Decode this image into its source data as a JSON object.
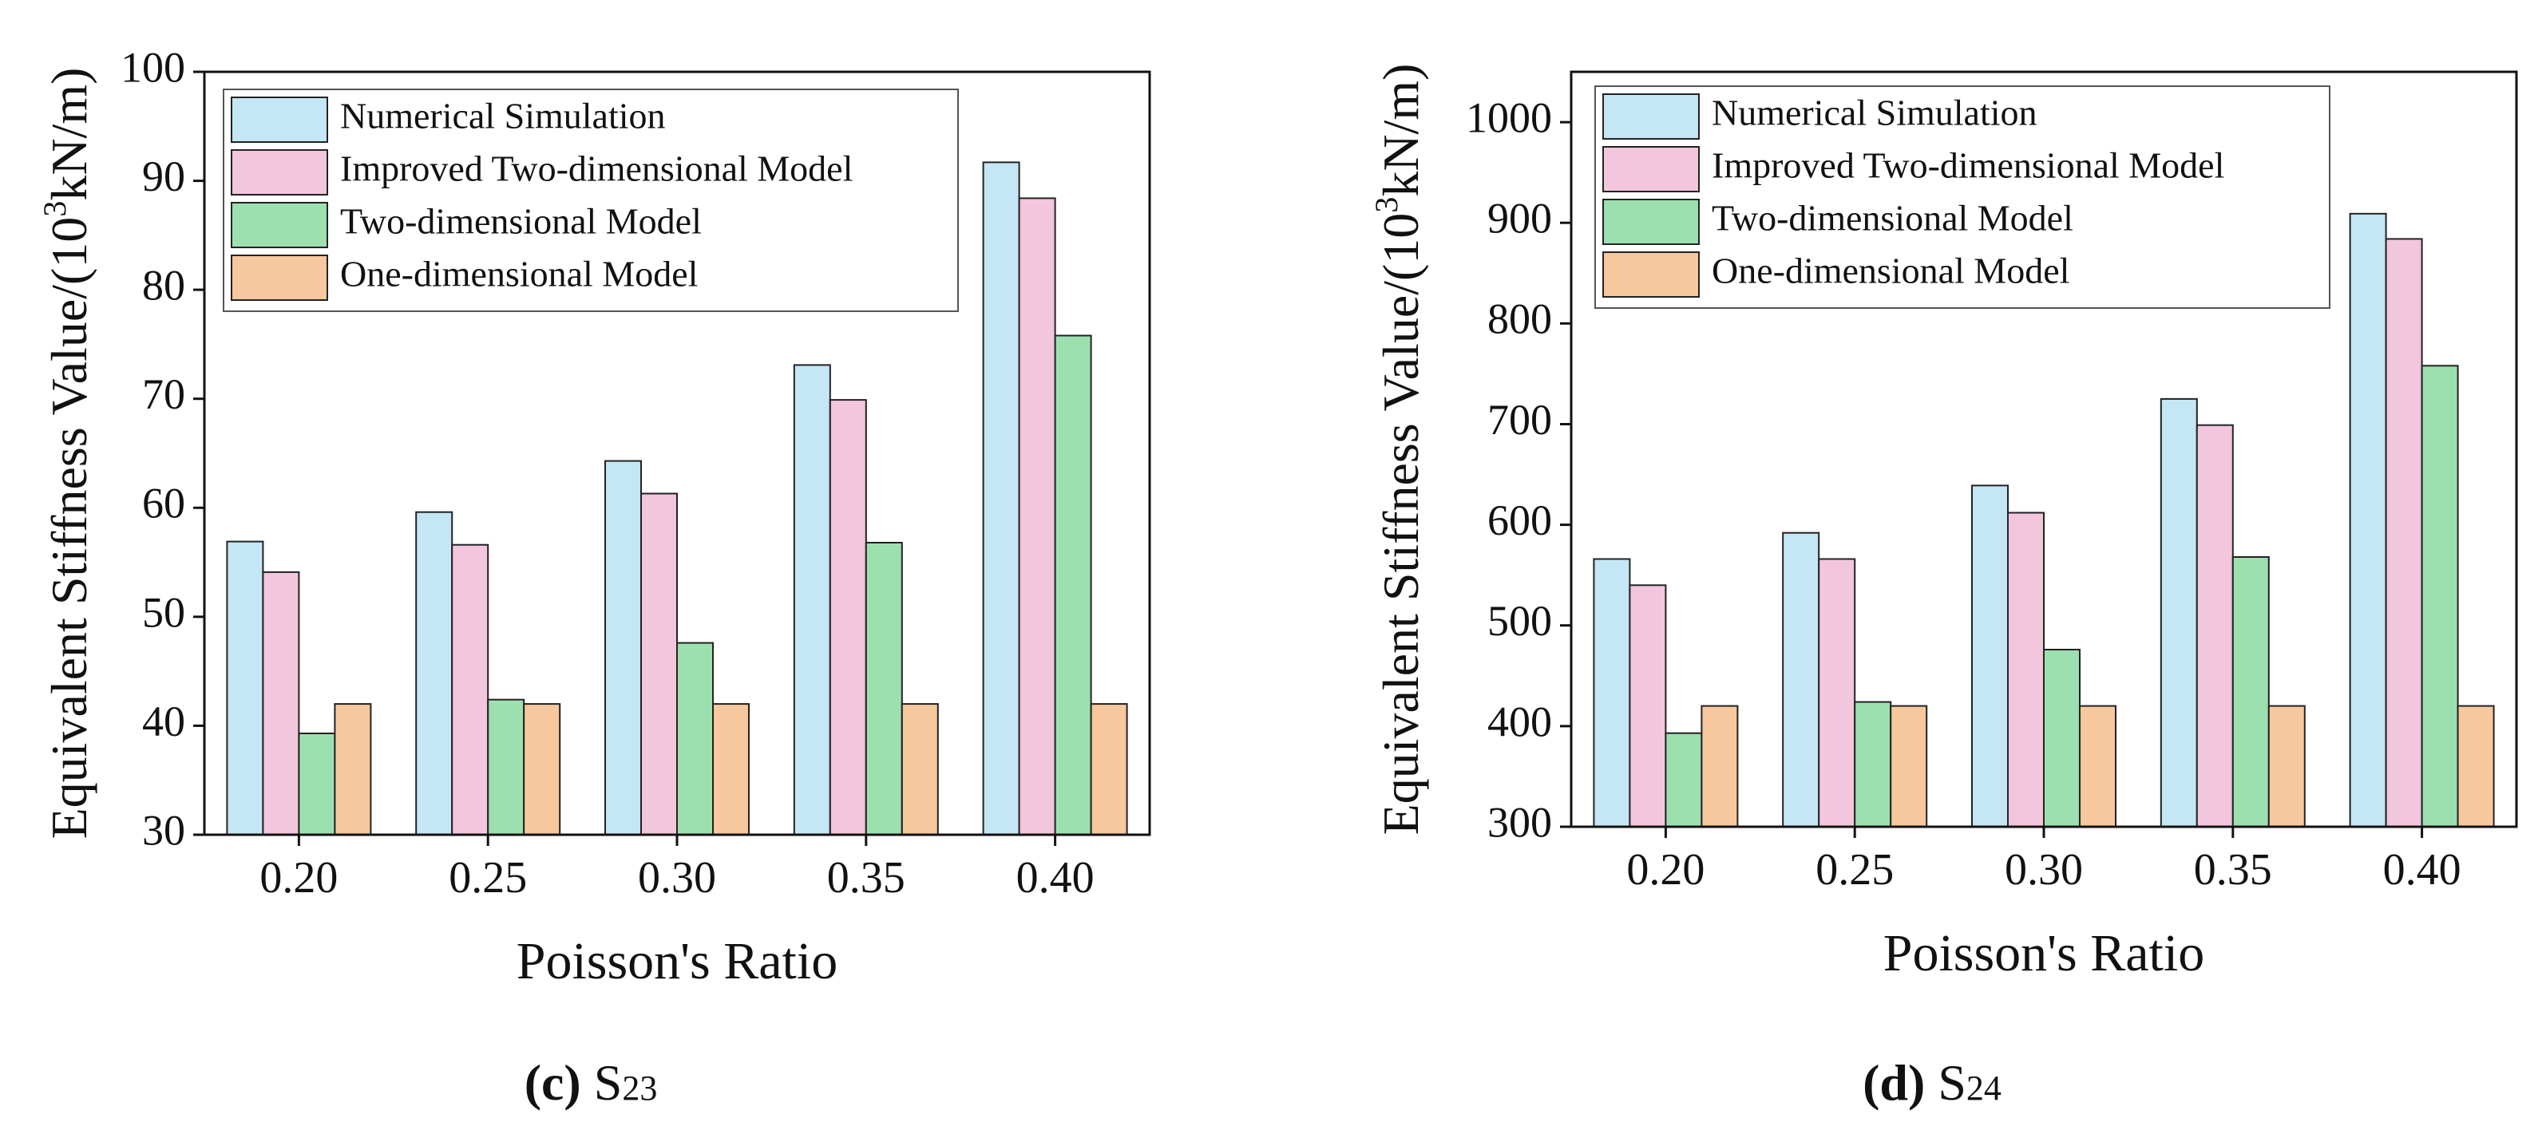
{
  "chart_data": [
    {
      "type": "bar",
      "panel": "c",
      "caption_letter": "(c)",
      "caption_symbol": "S",
      "caption_subscript": "23",
      "xlabel": "Poisson's Ratio",
      "ylabel_prefix": "Equivalent Stiffness Value/(10",
      "ylabel_sup": "3",
      "ylabel_suffix": "kN/m)",
      "categories": [
        "0.20",
        "0.25",
        "0.30",
        "0.35",
        "0.40"
      ],
      "ylim": [
        30,
        100
      ],
      "yticks": [
        30,
        40,
        50,
        60,
        70,
        80,
        90,
        100
      ],
      "ytick_labels": [
        "30",
        "40",
        "50",
        "60",
        "70",
        "80",
        "90",
        "100"
      ],
      "legend_position": "top-left",
      "grid": false,
      "series": [
        {
          "name": "Numerical Simulation",
          "color": "#c5e6f5",
          "values": [
            56.9,
            59.6,
            64.3,
            73.1,
            91.7
          ]
        },
        {
          "name": "Improved Two-dimensional Model",
          "color": "#f2c6dd",
          "values": [
            54.1,
            56.6,
            61.3,
            69.9,
            88.4
          ]
        },
        {
          "name": "Two-dimensional Model",
          "color": "#9de0b0",
          "values": [
            39.3,
            42.4,
            47.6,
            56.8,
            75.8
          ]
        },
        {
          "name": "One-dimensional Model",
          "color": "#f7c89d",
          "values": [
            42.0,
            42.0,
            42.0,
            42.0,
            42.0
          ]
        }
      ]
    },
    {
      "type": "bar",
      "panel": "d",
      "caption_letter": "(d)",
      "caption_symbol": "S",
      "caption_subscript": "24",
      "xlabel": "Poisson's Ratio",
      "ylabel_prefix": "Equivalent Stiffness Value/(10",
      "ylabel_sup": "3",
      "ylabel_suffix": "kN/m)",
      "categories": [
        "0.20",
        "0.25",
        "0.30",
        "0.35",
        "0.40"
      ],
      "ylim": [
        300,
        1050
      ],
      "yticks": [
        300,
        400,
        500,
        600,
        700,
        800,
        900,
        1000
      ],
      "ytick_labels": [
        "300",
        "400",
        "500",
        "600",
        "700",
        "800",
        "900",
        "1000"
      ],
      "legend_position": "top-left",
      "grid": false,
      "series": [
        {
          "name": "Numerical Simulation",
          "color": "#c5e6f5",
          "values": [
            566,
            592,
            639,
            725,
            909
          ]
        },
        {
          "name": "Improved Two-dimensional Model",
          "color": "#f2c6dd",
          "values": [
            540,
            566,
            612,
            699,
            884
          ]
        },
        {
          "name": "Two-dimensional Model",
          "color": "#9de0b0",
          "values": [
            393,
            424,
            476,
            568,
            758
          ]
        },
        {
          "name": "One-dimensional Model",
          "color": "#f7c89d",
          "values": [
            420,
            420,
            420,
            420,
            420
          ]
        }
      ]
    }
  ]
}
